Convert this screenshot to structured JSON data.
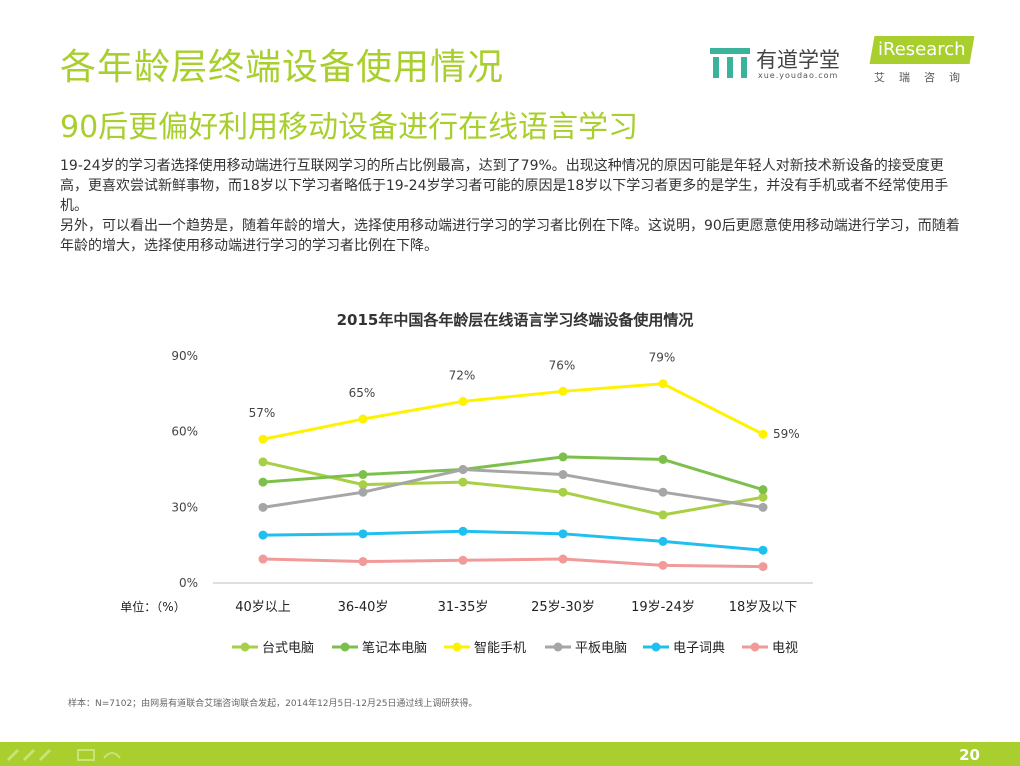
{
  "header": {
    "title": "各年龄层终端设备使用情况",
    "subtitle": "90后更偏好利用移动设备进行在线语言学习"
  },
  "logos": {
    "youdao_name": "有道学堂",
    "youdao_url": "xue.youdao.com",
    "iresearch_name": "iResearch",
    "iresearch_sub": "艾瑞咨询"
  },
  "body": {
    "paragraph1": "19-24岁的学习者选择使用移动端进行互联网学习的所占比例最高，达到了79%。出现这种情况的原因可能是年轻人对新技术新设备的接受度更高，更喜欢尝试新鲜事物，而18岁以下学习者略低于19-24岁学习者可能的原因是18岁以下学习者更多的是学生，并没有手机或者不经常使用手机。",
    "paragraph2": "另外，可以看出一个趋势是，随着年龄的增大，选择使用移动端进行学习的学习者比例在下降。这说明，90后更愿意使用移动端进行学习，而随着年龄的增大，选择使用移动端进行学习的学习者比例在下降。"
  },
  "chart_data": {
    "type": "line",
    "title": "2015年中国各年龄层在线语言学习终端设备使用情况",
    "unit_label": "单位：（%）",
    "categories": [
      "40岁以上",
      "36-40岁",
      "31-35岁",
      "25岁-30岁",
      "19岁-24岁",
      "18岁及以下"
    ],
    "ylim": [
      0,
      90
    ],
    "yticks": [
      0,
      30,
      60,
      90
    ],
    "ytick_labels": [
      "0%",
      "30%",
      "60%",
      "90%"
    ],
    "grid": false,
    "legend_position": "bottom",
    "series": [
      {
        "name": "台式电脑",
        "color": "#a8cf45",
        "values": [
          48,
          39,
          40,
          36,
          27,
          34
        ],
        "labeled": false
      },
      {
        "name": "笔记本电脑",
        "color": "#7cc04b",
        "values": [
          40,
          43,
          45,
          50,
          49,
          37
        ],
        "labeled": false
      },
      {
        "name": "智能手机",
        "color": "#fff200",
        "values": [
          57,
          65,
          72,
          76,
          79,
          59
        ],
        "labeled": true,
        "data_labels": [
          "57%",
          "65%",
          "72%",
          "76%",
          "79%",
          "59%"
        ]
      },
      {
        "name": "平板电脑",
        "color": "#a6a6a6",
        "values": [
          30,
          36,
          45,
          43,
          36,
          30
        ],
        "labeled": false
      },
      {
        "name": "电子词典",
        "color": "#1fc0ef",
        "values": [
          19,
          19.5,
          20.5,
          19.5,
          16.5,
          13
        ],
        "labeled": false
      },
      {
        "name": "电视",
        "color": "#f29a9a",
        "values": [
          9.5,
          8.5,
          9,
          9.5,
          7,
          6.5
        ],
        "labeled": false
      }
    ]
  },
  "source": "样本：N=7102；由网易有道联合艾瑞咨询联合发起，2014年12月5日-12月25日通过线上调研获得。",
  "footer": {
    "page_number": "20",
    "accent_color": "#a8cf2e"
  }
}
